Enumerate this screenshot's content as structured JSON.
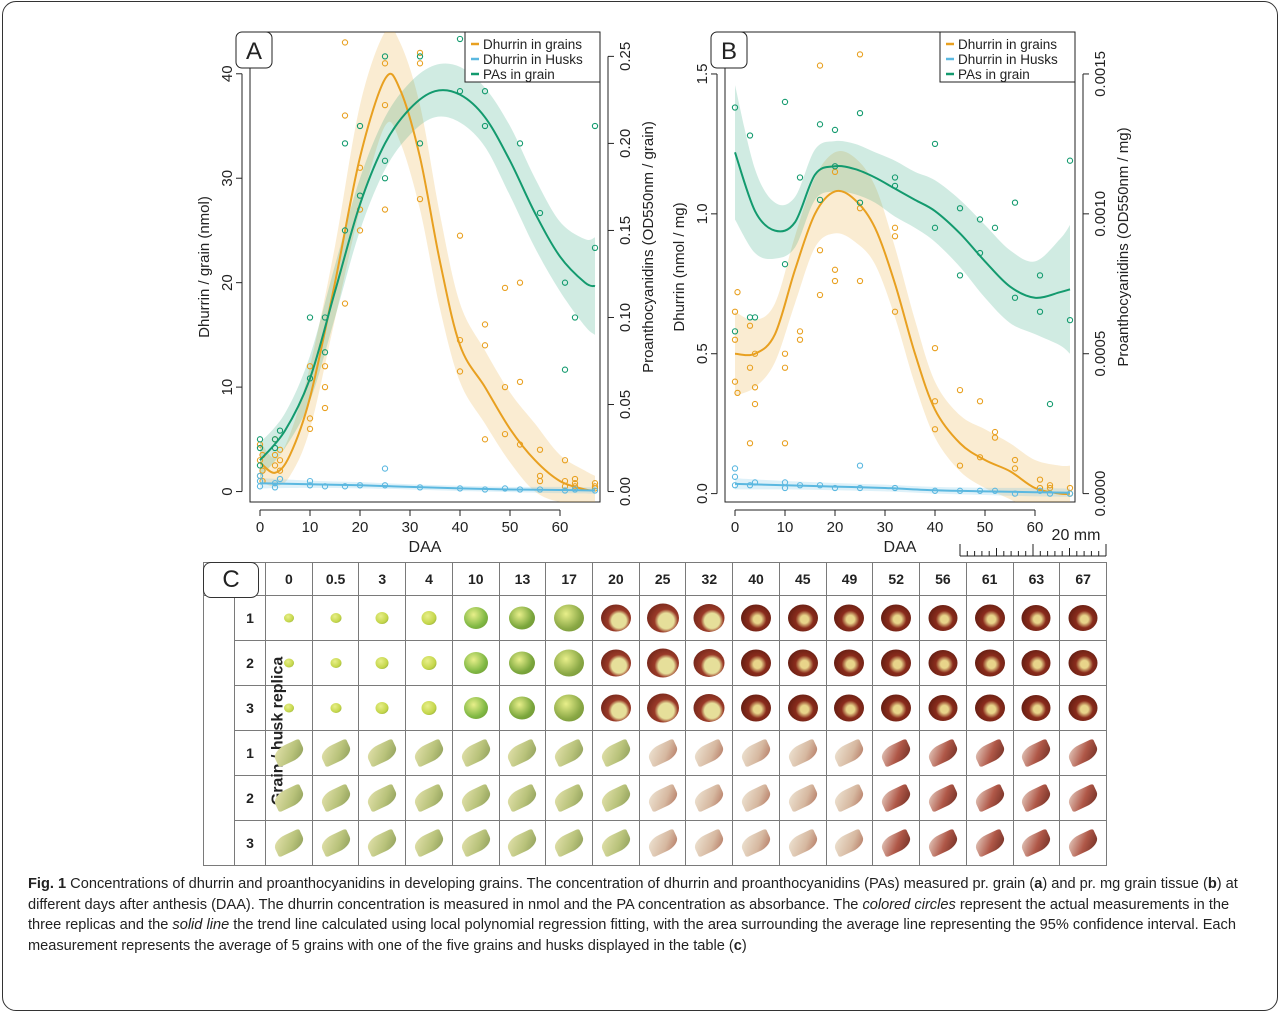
{
  "figure": {
    "caption_label": "Fig. 1",
    "caption_parts": [
      "Concentrations of dhurrin and proanthocyanidins in developing grains. The concentration of dhurrin and proanthocyanidins (PAs) measured pr. grain (",
      "a",
      ") and pr. mg grain tissue (",
      "b",
      ") at different days after anthesis (DAA). The dhurrin concentration is measured in nmol and the PA concentration as absorbance. The ",
      "colored circles",
      " represent the actual measurements in the three replicas and the ",
      "solid line",
      " the trend line calculated using local polynomial regression fitting, with the area surrounding the average line representing the 95% confidence interval. Each measurement represents the average of 5 grains with one of the five grains and husks displayed in the table (",
      "c",
      ")"
    ]
  },
  "legend": {
    "items": [
      "Dhurrin in grains",
      "Dhurrin in Husks",
      "PAs in grain"
    ],
    "colors": [
      "#e8a020",
      "#5bb8e0",
      "#139a6e"
    ]
  },
  "panel_c": {
    "label": "C",
    "row_group_label": "Grain / husk replica",
    "columns": [
      "0",
      "0.5",
      "3",
      "4",
      "10",
      "13",
      "17",
      "20",
      "25",
      "32",
      "40",
      "45",
      "49",
      "52",
      "56",
      "61",
      "63",
      "67"
    ],
    "replicas": [
      "1",
      "2",
      "3",
      "1",
      "2",
      "3"
    ],
    "scale_label": "20 mm"
  },
  "chart_data": [
    {
      "type": "scatter",
      "panel": "A",
      "xlabel": "DAA",
      "ylabel": "Dhurrin / grain (nmol)",
      "y2label": "Proanthocyanidins (OD550nm / grain)",
      "xlim": [
        -2,
        68
      ],
      "ylim": [
        -1,
        44
      ],
      "y2lim": [
        -0.006,
        0.264
      ],
      "xticks": [
        "0",
        "10",
        "20",
        "30",
        "40",
        "50",
        "60"
      ],
      "yticks": [
        "0",
        "10",
        "20",
        "30",
        "40"
      ],
      "y2ticks": [
        "0.00",
        "0.05",
        "0.10",
        "0.15",
        "0.20",
        "0.25"
      ],
      "legend_position": "top-right",
      "series": [
        {
          "name": "Dhurrin in grains",
          "axis": "left",
          "color": "#e8a020",
          "x": [
            0,
            0,
            0,
            0.5,
            0.5,
            0.5,
            3,
            3,
            3,
            4,
            4,
            4,
            10,
            10,
            10,
            13,
            13,
            13,
            17,
            17,
            17,
            20,
            20,
            20,
            25,
            25,
            25,
            32,
            32,
            32,
            40,
            40,
            40,
            45,
            45,
            45,
            49,
            49,
            49,
            52,
            52,
            52,
            56,
            56,
            56,
            61,
            61,
            61,
            63,
            63,
            63,
            67,
            67,
            67
          ],
          "y": [
            1.5,
            3.0,
            4.5,
            1.0,
            2.0,
            3.5,
            2.5,
            3.5,
            5.0,
            2.0,
            3.0,
            4.0,
            6.0,
            7.0,
            12.0,
            8.0,
            10.0,
            12.0,
            18.0,
            36.0,
            43.0,
            25.0,
            27.0,
            31.0,
            27.0,
            37.0,
            41.0,
            28.0,
            41.0,
            42.0,
            11.5,
            14.5,
            24.5,
            5.0,
            14.0,
            16.0,
            5.5,
            10.0,
            19.5,
            4.5,
            10.5,
            20.0,
            1.0,
            1.5,
            4.0,
            0.5,
            1.0,
            3.0,
            0.5,
            0.8,
            1.2,
            0.3,
            0.5,
            0.8
          ],
          "trend_x": [
            0,
            3,
            6,
            10,
            15,
            20,
            25,
            28,
            32,
            36,
            40,
            45,
            50,
            55,
            60,
            65,
            67
          ],
          "trend_y": [
            2.8,
            1.8,
            3.5,
            9.0,
            20.0,
            32.0,
            39.5,
            38.5,
            32.0,
            22.0,
            14.0,
            10.0,
            6.0,
            3.0,
            1.0,
            0.2,
            0.1
          ],
          "ci_lower": [
            1.0,
            0.5,
            1.5,
            6.0,
            16.5,
            27.0,
            35.0,
            33.5,
            27.0,
            17.5,
            10.5,
            6.5,
            2.8,
            0.0,
            -1.0,
            -1.0,
            -1.0
          ],
          "ci_upper": [
            4.8,
            3.2,
            5.5,
            12.0,
            23.5,
            37.0,
            44.0,
            43.0,
            37.0,
            26.5,
            18.0,
            13.5,
            9.5,
            6.5,
            3.5,
            2.0,
            1.5
          ]
        },
        {
          "name": "Dhurrin in Husks",
          "axis": "left",
          "color": "#5bb8e0",
          "x": [
            0,
            0,
            0,
            3,
            3,
            4,
            10,
            10,
            13,
            17,
            20,
            25,
            25,
            32,
            40,
            45,
            49,
            52,
            56,
            61,
            63,
            67
          ],
          "y": [
            0.5,
            1.0,
            1.5,
            0.4,
            0.8,
            1.2,
            0.6,
            1.0,
            0.5,
            0.5,
            0.6,
            0.6,
            2.2,
            0.4,
            0.3,
            0.2,
            0.3,
            0.2,
            0.2,
            0.1,
            0.2,
            0.1
          ],
          "trend_x": [
            0,
            10,
            20,
            30,
            40,
            50,
            60,
            67
          ],
          "trend_y": [
            0.8,
            0.7,
            0.6,
            0.45,
            0.3,
            0.2,
            0.15,
            0.1
          ],
          "ci_lower": [
            0.3,
            0.35,
            0.3,
            0.2,
            0.05,
            -0.05,
            -0.15,
            -0.2
          ],
          "ci_upper": [
            1.3,
            1.05,
            0.9,
            0.7,
            0.55,
            0.45,
            0.45,
            0.4
          ]
        },
        {
          "name": "PAs in grain",
          "axis": "right",
          "color": "#139a6e",
          "x": [
            0,
            0,
            0,
            3,
            3,
            4,
            10,
            10,
            13,
            13,
            17,
            17,
            20,
            20,
            25,
            25,
            25,
            32,
            32,
            40,
            40,
            45,
            45,
            49,
            52,
            56,
            61,
            61,
            63,
            67,
            67
          ],
          "y": [
            0.015,
            0.025,
            0.03,
            0.025,
            0.03,
            0.035,
            0.065,
            0.1,
            0.08,
            0.1,
            0.15,
            0.2,
            0.17,
            0.21,
            0.18,
            0.19,
            0.25,
            0.2,
            0.25,
            0.23,
            0.26,
            0.21,
            0.23,
            0.24,
            0.2,
            0.16,
            0.12,
            0.07,
            0.1,
            0.14,
            0.21
          ],
          "trend_x": [
            0,
            5,
            10,
            15,
            20,
            25,
            30,
            35,
            40,
            45,
            50,
            55,
            60,
            65,
            67
          ],
          "trend_y": [
            0.018,
            0.035,
            0.065,
            0.115,
            0.165,
            0.2,
            0.22,
            0.23,
            0.228,
            0.215,
            0.19,
            0.16,
            0.135,
            0.12,
            0.118
          ],
          "ci_lower": [
            0.008,
            0.025,
            0.052,
            0.1,
            0.15,
            0.185,
            0.205,
            0.215,
            0.212,
            0.198,
            0.17,
            0.14,
            0.115,
            0.095,
            0.09
          ],
          "ci_upper": [
            0.028,
            0.045,
            0.078,
            0.13,
            0.18,
            0.215,
            0.235,
            0.245,
            0.244,
            0.232,
            0.21,
            0.18,
            0.155,
            0.145,
            0.146
          ]
        }
      ]
    },
    {
      "type": "scatter",
      "panel": "B",
      "xlabel": "DAA",
      "ylabel": "Dhurrin (nmol / mg)",
      "y2label": "Proanthocyanidins (OD550nm / mg)",
      "xlim": [
        -2,
        68
      ],
      "ylim": [
        -0.03,
        1.65
      ],
      "y2lim": [
        -3e-05,
        0.00165
      ],
      "xticks": [
        "0",
        "10",
        "20",
        "30",
        "40",
        "50",
        "60"
      ],
      "yticks": [
        "0.0",
        "0.5",
        "1.0",
        "1.5"
      ],
      "y2ticks": [
        "0.0000",
        "0.0005",
        "0.0010",
        "0.0015"
      ],
      "legend_position": "top-right",
      "series": [
        {
          "name": "Dhurrin in grains",
          "axis": "left",
          "color": "#e8a020",
          "x": [
            0,
            0,
            0,
            0.5,
            0.5,
            3,
            3,
            3,
            4,
            4,
            4,
            10,
            10,
            10,
            13,
            13,
            17,
            17,
            17,
            20,
            20,
            20,
            25,
            25,
            25,
            32,
            32,
            32,
            40,
            40,
            40,
            45,
            45,
            49,
            49,
            52,
            52,
            56,
            56,
            61,
            61,
            63,
            63,
            67,
            67
          ],
          "y": [
            0.4,
            0.55,
            0.65,
            0.36,
            0.72,
            0.18,
            0.45,
            0.6,
            0.32,
            0.38,
            0.5,
            0.18,
            0.45,
            0.5,
            0.55,
            0.58,
            0.71,
            0.87,
            1.53,
            0.76,
            0.8,
            1.15,
            0.76,
            1.02,
            1.57,
            0.65,
            0.92,
            0.95,
            0.23,
            0.33,
            0.52,
            0.1,
            0.37,
            0.13,
            0.33,
            0.2,
            0.22,
            0.09,
            0.12,
            0.02,
            0.05,
            0.02,
            0.03,
            0.0,
            0.02
          ],
          "trend_x": [
            0,
            4,
            8,
            12,
            16,
            20,
            24,
            28,
            32,
            36,
            40,
            45,
            50,
            55,
            60,
            65,
            67
          ],
          "trend_y": [
            0.5,
            0.5,
            0.57,
            0.8,
            1.0,
            1.08,
            1.05,
            0.95,
            0.75,
            0.5,
            0.3,
            0.18,
            0.12,
            0.08,
            0.02,
            0.0,
            0.0
          ],
          "ci_lower": [
            0.35,
            0.38,
            0.47,
            0.68,
            0.88,
            0.93,
            0.9,
            0.82,
            0.63,
            0.39,
            0.2,
            0.08,
            0.02,
            -0.02,
            -0.07,
            -0.1,
            -0.1
          ],
          "ci_upper": [
            0.65,
            0.62,
            0.68,
            0.92,
            1.13,
            1.22,
            1.2,
            1.1,
            0.88,
            0.62,
            0.4,
            0.28,
            0.23,
            0.18,
            0.12,
            0.1,
            0.1
          ]
        },
        {
          "name": "Dhurrin in Husks",
          "axis": "left",
          "color": "#5bb8e0",
          "x": [
            0,
            0,
            0,
            3,
            4,
            10,
            10,
            13,
            17,
            20,
            25,
            25,
            32,
            40,
            45,
            49,
            52,
            56,
            61,
            63,
            67
          ],
          "y": [
            0.03,
            0.06,
            0.09,
            0.03,
            0.04,
            0.02,
            0.04,
            0.03,
            0.03,
            0.02,
            0.02,
            0.1,
            0.02,
            0.01,
            0.01,
            0.01,
            0.01,
            0.0,
            0.01,
            0.0,
            0.0
          ],
          "trend_x": [
            0,
            10,
            20,
            30,
            40,
            50,
            60,
            67
          ],
          "trend_y": [
            0.035,
            0.03,
            0.025,
            0.02,
            0.012,
            0.008,
            0.005,
            0.003
          ],
          "ci_lower": [
            0.015,
            0.015,
            0.012,
            0.008,
            0.0,
            -0.005,
            -0.01,
            -0.012
          ],
          "ci_upper": [
            0.055,
            0.045,
            0.038,
            0.032,
            0.024,
            0.021,
            0.02,
            0.018
          ]
        },
        {
          "name": "PAs in grain",
          "axis": "right",
          "color": "#139a6e",
          "x": [
            0,
            0,
            3,
            3,
            4,
            10,
            10,
            13,
            17,
            17,
            20,
            20,
            25,
            25,
            32,
            32,
            40,
            40,
            45,
            45,
            49,
            49,
            52,
            56,
            56,
            61,
            61,
            63,
            67,
            67
          ],
          "y": [
            0.00138,
            0.00058,
            0.00128,
            0.00063,
            0.00063,
            0.0014,
            0.00082,
            0.00113,
            0.00132,
            0.00105,
            0.0013,
            0.00117,
            0.00136,
            0.00104,
            0.00113,
            0.0011,
            0.00125,
            0.00095,
            0.00102,
            0.00078,
            0.00098,
            0.00086,
            0.00095,
            0.00104,
            0.0007,
            0.00078,
            0.00065,
            0.00032,
            0.00119,
            0.00062
          ],
          "trend_x": [
            0,
            4,
            8,
            12,
            16,
            20,
            24,
            28,
            32,
            36,
            40,
            45,
            50,
            55,
            60,
            65,
            67
          ],
          "trend_y": [
            0.00122,
            0.00101,
            0.00094,
            0.00097,
            0.00114,
            0.00117,
            0.00116,
            0.00113,
            0.00109,
            0.00105,
            0.00101,
            0.00093,
            0.00083,
            0.00074,
            0.0007,
            0.00072,
            0.00073
          ],
          "ci_lower": [
            0.00098,
            0.00086,
            0.00084,
            0.00088,
            0.00105,
            0.00108,
            0.00107,
            0.00104,
            0.00099,
            0.00095,
            0.0009,
            0.00081,
            0.0007,
            0.00061,
            0.00057,
            0.00053,
            0.0005
          ],
          "ci_upper": [
            0.00146,
            0.00116,
            0.00104,
            0.00106,
            0.00123,
            0.00126,
            0.00125,
            0.00122,
            0.00119,
            0.00115,
            0.00112,
            0.00105,
            0.00096,
            0.00087,
            0.00083,
            0.00091,
            0.00096
          ]
        }
      ]
    }
  ]
}
